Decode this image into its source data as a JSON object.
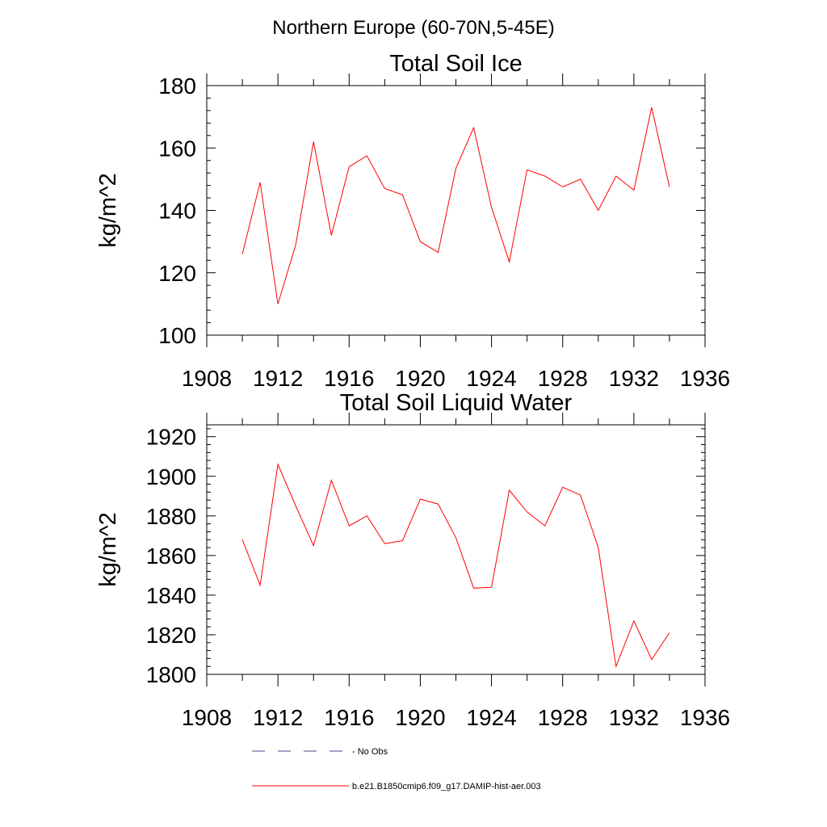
{
  "page": {
    "title": "Northern Europe (60-70N,5-45E)"
  },
  "chart_data": [
    {
      "type": "line",
      "title": "Total Soil Ice",
      "ylabel": "kg/m^2",
      "xlabel": "",
      "xlim": [
        1908,
        1936
      ],
      "ylim": [
        100,
        180
      ],
      "x_ticks": [
        1908,
        1912,
        1916,
        1920,
        1924,
        1928,
        1932,
        1936
      ],
      "y_ticks": [
        100,
        120,
        140,
        160,
        180
      ],
      "series": [
        {
          "name": "b.e21.B1850cmip6.f09_g17.DAMIP-hist-aer.003",
          "color": "#ff0000",
          "x": [
            1910,
            1911,
            1912,
            1913,
            1914,
            1915,
            1916,
            1917,
            1918,
            1919,
            1920,
            1921,
            1922,
            1923,
            1924,
            1925,
            1926,
            1927,
            1928,
            1929,
            1930,
            1931,
            1932,
            1933,
            1934
          ],
          "values": [
            126,
            149,
            110,
            129,
            162,
            132,
            154,
            157.5,
            147,
            145,
            130,
            126.5,
            153.5,
            166.5,
            141,
            123.5,
            153,
            151,
            147.5,
            150,
            140,
            151,
            146.5,
            173,
            147.5
          ]
        }
      ]
    },
    {
      "type": "line",
      "title": "Total Soil Liquid Water",
      "ylabel": "kg/m^2",
      "xlabel": "",
      "xlim": [
        1908,
        1936
      ],
      "ylim": [
        1800,
        1926
      ],
      "x_ticks": [
        1908,
        1912,
        1916,
        1920,
        1924,
        1928,
        1932,
        1936
      ],
      "y_ticks": [
        1800,
        1820,
        1840,
        1860,
        1880,
        1900,
        1920
      ],
      "series": [
        {
          "name": "b.e21.B1850cmip6.f09_g17.DAMIP-hist-aer.003",
          "color": "#ff0000",
          "x": [
            1910,
            1911,
            1912,
            1913,
            1914,
            1915,
            1916,
            1917,
            1918,
            1919,
            1920,
            1921,
            1922,
            1923,
            1924,
            1925,
            1926,
            1927,
            1928,
            1929,
            1930,
            1931,
            1932,
            1933,
            1934
          ],
          "values": [
            1868,
            1845,
            1906,
            1885,
            1865,
            1898,
            1875,
            1880,
            1866,
            1867.5,
            1888.5,
            1886,
            1869,
            1843.5,
            1844,
            1893,
            1882,
            1875,
            1894.5,
            1890.5,
            1864,
            1804,
            1827,
            1807.5,
            1821
          ]
        }
      ]
    }
  ],
  "legend": {
    "items": [
      {
        "label": "No Obs",
        "color": "#4a4a8a",
        "dash": true
      },
      {
        "label": "b.e21.B1850cmip6.f09_g17.DAMIP-hist-aer.003",
        "color": "#ff0000",
        "dash": false
      }
    ]
  }
}
